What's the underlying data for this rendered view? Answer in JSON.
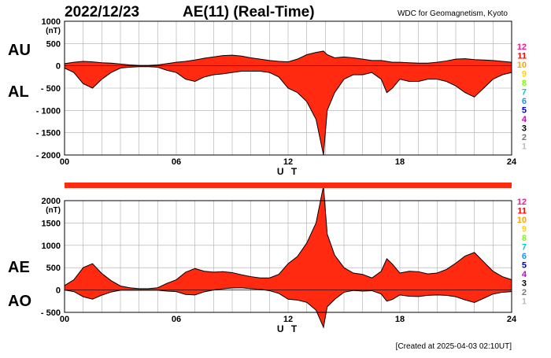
{
  "header": {
    "date": "2022/12/23",
    "title": "AE(11) (Real-Time)",
    "org": "WDC for Geomagnetism, Kyoto"
  },
  "footer": {
    "created": "[Created at 2025-04-03 02:10UT]"
  },
  "station_numbers": [
    "12",
    "11",
    "10",
    "9",
    "8",
    "7",
    "6",
    "5",
    "4",
    "3",
    "2",
    "1"
  ],
  "station_colors": [
    "#ff1493",
    "#ff0000",
    "#ffa500",
    "#ffd700",
    "#7fff00",
    "#00cccc",
    "#1e90ff",
    "#0000cd",
    "#cc00cc",
    "#000000",
    "#777777",
    "#bbbbbb"
  ],
  "colors": {
    "fill": "#ff2a10",
    "outline": "#000000",
    "grid": "#aaaaaa",
    "bar": "#ff2a10"
  },
  "chart_data": [
    {
      "type": "area",
      "series_labels": [
        "AU",
        "AL"
      ],
      "x_unit_label": "U T",
      "y_unit": "(nT)",
      "xlim": [
        0,
        24
      ],
      "ylim": [
        -2000,
        1000
      ],
      "x_ticks": [
        0,
        6,
        12,
        18,
        24
      ],
      "x_tick_labels": [
        "00",
        "06",
        "12",
        "18",
        "24"
      ],
      "y_ticks": [
        1000,
        500,
        0,
        -500,
        -1000,
        -1500,
        -2000
      ],
      "y_tick_labels": [
        "1000",
        "500",
        "0",
        "- 500",
        "- 1000",
        "- 1500",
        "- 2000"
      ],
      "grid": true,
      "x": [
        0,
        0.5,
        1,
        1.5,
        2,
        2.5,
        3,
        3.5,
        4,
        4.5,
        5,
        5.5,
        6,
        6.5,
        7,
        7.5,
        8,
        8.5,
        9,
        9.5,
        10,
        10.5,
        11,
        11.5,
        12,
        12.5,
        13,
        13.5,
        13.9,
        14.1,
        14.5,
        15,
        15.5,
        16,
        16.5,
        17,
        17.3,
        17.6,
        18,
        18.5,
        19,
        19.5,
        20,
        20.5,
        21,
        21.5,
        22,
        22.5,
        23,
        23.5,
        24
      ],
      "series": [
        {
          "name": "AU",
          "values": [
            50,
            80,
            100,
            90,
            70,
            60,
            40,
            20,
            10,
            10,
            20,
            50,
            80,
            100,
            130,
            170,
            200,
            230,
            240,
            220,
            180,
            150,
            120,
            100,
            90,
            150,
            250,
            300,
            330,
            250,
            180,
            200,
            180,
            150,
            120,
            120,
            100,
            80,
            80,
            70,
            60,
            60,
            80,
            110,
            150,
            160,
            140,
            130,
            120,
            100,
            80
          ]
        },
        {
          "name": "AL",
          "values": [
            -50,
            -150,
            -400,
            -500,
            -300,
            -150,
            -50,
            -30,
            -20,
            -20,
            -30,
            -100,
            -150,
            -300,
            -350,
            -250,
            -200,
            -180,
            -150,
            -120,
            -120,
            -120,
            -150,
            -250,
            -500,
            -600,
            -800,
            -1200,
            -2000,
            -1000,
            -600,
            -300,
            -200,
            -200,
            -150,
            -300,
            -600,
            -500,
            -300,
            -350,
            -350,
            -300,
            -300,
            -350,
            -450,
            -600,
            -700,
            -500,
            -300,
            -200,
            -150
          ]
        }
      ]
    },
    {
      "type": "area",
      "series_labels": [
        "AE",
        "AO"
      ],
      "x_unit_label": "U T",
      "y_unit": "(nT)",
      "xlim": [
        0,
        24
      ],
      "ylim": [
        -500,
        2000
      ],
      "x_ticks": [
        0,
        6,
        12,
        18,
        24
      ],
      "x_tick_labels": [
        "00",
        "06",
        "12",
        "18",
        "24"
      ],
      "y_ticks": [
        2000,
        1500,
        1000,
        500,
        0,
        -500
      ],
      "y_tick_labels": [
        "2000",
        "1500",
        "1000",
        "500",
        "0",
        "- 500"
      ],
      "grid": true,
      "x": [
        0,
        0.5,
        1,
        1.5,
        2,
        2.5,
        3,
        3.5,
        4,
        4.5,
        5,
        5.5,
        6,
        6.5,
        7,
        7.5,
        8,
        8.5,
        9,
        9.5,
        10,
        10.5,
        11,
        11.5,
        12,
        12.5,
        13,
        13.5,
        13.9,
        14.1,
        14.5,
        15,
        15.5,
        16,
        16.5,
        17,
        17.3,
        17.6,
        18,
        18.5,
        19,
        19.5,
        20,
        20.5,
        21,
        21.5,
        22,
        22.5,
        23,
        23.5,
        24
      ],
      "series": [
        {
          "name": "AE",
          "values": [
            100,
            230,
            500,
            590,
            370,
            210,
            90,
            50,
            30,
            30,
            50,
            150,
            230,
            400,
            480,
            420,
            400,
            410,
            390,
            340,
            300,
            270,
            270,
            350,
            590,
            750,
            1050,
            1500,
            2330,
            1250,
            780,
            500,
            380,
            350,
            270,
            420,
            700,
            580,
            380,
            420,
            410,
            360,
            380,
            460,
            600,
            760,
            840,
            630,
            420,
            300,
            230
          ]
        },
        {
          "name": "AO",
          "values": [
            0,
            -35,
            -150,
            -205,
            -115,
            -45,
            -5,
            -5,
            -5,
            -5,
            -5,
            -25,
            -35,
            -100,
            -110,
            -40,
            0,
            25,
            45,
            50,
            30,
            15,
            -15,
            -75,
            -205,
            -225,
            -275,
            -450,
            -835,
            -375,
            -210,
            -50,
            -10,
            -25,
            -15,
            -90,
            -250,
            -210,
            -110,
            -140,
            -145,
            -120,
            -110,
            -120,
            -150,
            -220,
            -280,
            -185,
            -90,
            -50,
            -35
          ]
        }
      ]
    }
  ]
}
